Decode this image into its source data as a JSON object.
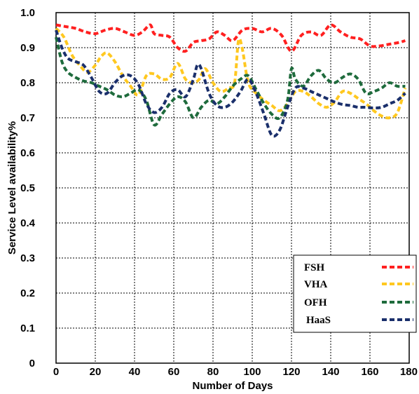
{
  "chart_data": {
    "type": "line",
    "xlabel": "Number of Days",
    "ylabel": "Service Level availability%",
    "xlim": [
      0,
      180
    ],
    "ylim": [
      0,
      1.0
    ],
    "x_ticks": [
      "0",
      "20",
      "40",
      "60",
      "80",
      "100",
      "120",
      "140",
      "160",
      "180"
    ],
    "y_ticks": [
      "0",
      "0.1",
      "0.2",
      "0.3",
      "0.4",
      "0.5",
      "0.6",
      "0.7",
      "0.8",
      "0.9",
      "1.0"
    ],
    "grid": true,
    "legend_position": "bottom-right",
    "series": [
      {
        "name": "FSH",
        "color": "#ff2020",
        "x": [
          0,
          5,
          10,
          15,
          20,
          25,
          30,
          35,
          40,
          44,
          48,
          50,
          54,
          58,
          62,
          66,
          70,
          74,
          78,
          82,
          86,
          90,
          95,
          100,
          105,
          110,
          115,
          120,
          125,
          130,
          135,
          140,
          145,
          150,
          155,
          160,
          165,
          170,
          175,
          178
        ],
        "y": [
          0.965,
          0.96,
          0.955,
          0.945,
          0.94,
          0.95,
          0.955,
          0.945,
          0.935,
          0.945,
          0.965,
          0.94,
          0.935,
          0.93,
          0.9,
          0.89,
          0.915,
          0.92,
          0.925,
          0.945,
          0.935,
          0.92,
          0.95,
          0.955,
          0.945,
          0.955,
          0.935,
          0.89,
          0.935,
          0.945,
          0.935,
          0.965,
          0.945,
          0.93,
          0.925,
          0.905,
          0.905,
          0.91,
          0.915,
          0.92
        ]
      },
      {
        "name": "VHA",
        "color": "#ffc820",
        "x": [
          0,
          4,
          8,
          12,
          16,
          20,
          23,
          26,
          30,
          34,
          38,
          42,
          46,
          50,
          54,
          58,
          62,
          66,
          70,
          73,
          76,
          80,
          84,
          88,
          91,
          93,
          95,
          98,
          102,
          106,
          110,
          114,
          118,
          122,
          126,
          130,
          134,
          138,
          142,
          146,
          150,
          154,
          158,
          162,
          166,
          170,
          174,
          178
        ],
        "y": [
          0.955,
          0.93,
          0.88,
          0.85,
          0.83,
          0.85,
          0.875,
          0.885,
          0.86,
          0.82,
          0.79,
          0.765,
          0.82,
          0.825,
          0.81,
          0.815,
          0.855,
          0.81,
          0.8,
          0.81,
          0.84,
          0.8,
          0.775,
          0.785,
          0.8,
          0.92,
          0.895,
          0.8,
          0.77,
          0.75,
          0.735,
          0.72,
          0.74,
          0.775,
          0.775,
          0.76,
          0.74,
          0.73,
          0.745,
          0.775,
          0.77,
          0.755,
          0.74,
          0.72,
          0.705,
          0.7,
          0.715,
          0.785
        ]
      },
      {
        "name": "OFH",
        "color": "#1e6b3c",
        "x": [
          0,
          3,
          6,
          10,
          14,
          18,
          22,
          26,
          30,
          34,
          38,
          42,
          46,
          50,
          54,
          58,
          62,
          66,
          70,
          74,
          78,
          82,
          86,
          90,
          94,
          98,
          102,
          106,
          110,
          114,
          118,
          120,
          122,
          126,
          130,
          134,
          138,
          142,
          146,
          150,
          154,
          158,
          162,
          166,
          170,
          174,
          178
        ],
        "y": [
          0.93,
          0.86,
          0.83,
          0.815,
          0.805,
          0.8,
          0.79,
          0.78,
          0.765,
          0.76,
          0.77,
          0.78,
          0.75,
          0.68,
          0.71,
          0.74,
          0.76,
          0.745,
          0.7,
          0.73,
          0.75,
          0.74,
          0.76,
          0.79,
          0.81,
          0.82,
          0.78,
          0.74,
          0.71,
          0.7,
          0.75,
          0.84,
          0.81,
          0.79,
          0.82,
          0.835,
          0.81,
          0.8,
          0.815,
          0.825,
          0.81,
          0.77,
          0.775,
          0.785,
          0.8,
          0.79,
          0.79
        ]
      },
      {
        "name": "HaaS",
        "color": "#1a2f6b",
        "x": [
          0,
          3,
          6,
          10,
          14,
          18,
          22,
          26,
          30,
          34,
          38,
          42,
          46,
          50,
          54,
          58,
          62,
          66,
          70,
          72,
          74,
          78,
          82,
          86,
          90,
          94,
          98,
          102,
          106,
          110,
          114,
          118,
          122,
          126,
          130,
          134,
          138,
          142,
          146,
          150,
          154,
          158,
          162,
          166,
          170,
          174,
          178
        ],
        "y": [
          0.95,
          0.9,
          0.87,
          0.86,
          0.85,
          0.815,
          0.775,
          0.77,
          0.8,
          0.82,
          0.82,
          0.795,
          0.74,
          0.715,
          0.73,
          0.77,
          0.78,
          0.76,
          0.81,
          0.85,
          0.84,
          0.77,
          0.735,
          0.73,
          0.745,
          0.775,
          0.81,
          0.77,
          0.71,
          0.65,
          0.665,
          0.73,
          0.785,
          0.785,
          0.775,
          0.765,
          0.755,
          0.745,
          0.738,
          0.735,
          0.73,
          0.73,
          0.728,
          0.73,
          0.74,
          0.75,
          0.77
        ]
      }
    ]
  }
}
